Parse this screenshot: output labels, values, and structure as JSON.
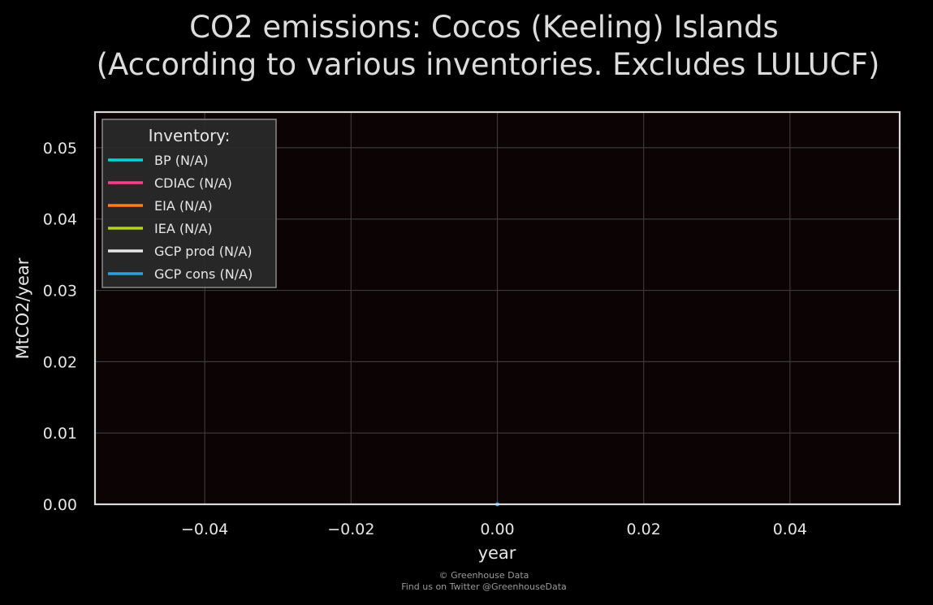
{
  "chart_data": {
    "type": "line",
    "title": "CO2 emissions: Cocos (Keeling) Islands",
    "subtitle": "(According to various inventories. Excludes LULUCF)",
    "xlabel": "year",
    "ylabel": "MtCO2/year",
    "xlim": [
      -0.055,
      0.055
    ],
    "ylim": [
      0,
      0.055
    ],
    "x_ticks": [
      -0.04,
      -0.02,
      0.0,
      0.02,
      0.04
    ],
    "x_tick_labels": [
      "−0.04",
      "−0.02",
      "0.00",
      "0.02",
      "0.04"
    ],
    "y_ticks": [
      0.0,
      0.01,
      0.02,
      0.03,
      0.04,
      0.05
    ],
    "y_tick_labels": [
      "0.00",
      "0.01",
      "0.02",
      "0.03",
      "0.04",
      "0.05"
    ],
    "grid": true,
    "legend": {
      "title": "Inventory:",
      "placement": "top-left"
    },
    "series": [
      {
        "name": "BP (N/A)",
        "color": "#00d4d4",
        "points": []
      },
      {
        "name": "CDIAC (N/A)",
        "color": "#ff3d8b",
        "points": []
      },
      {
        "name": "EIA (N/A)",
        "color": "#ff7f1f",
        "points": []
      },
      {
        "name": "IEA (N/A)",
        "color": "#b5d21a",
        "points": []
      },
      {
        "name": "GCP prod (N/A)",
        "color": "#e6e6e6",
        "points": []
      },
      {
        "name": "GCP cons (N/A)",
        "color": "#2aa0e0",
        "points": [
          [
            0,
            0
          ]
        ]
      }
    ],
    "colors": {
      "background": "#000000",
      "plot_background": "#0b0304",
      "grid": "#3a3a3a",
      "frame": "#d9d9d9"
    }
  },
  "footer": {
    "line1": "© Greenhouse Data",
    "line2": "Find us on Twitter @GreenhouseData"
  }
}
